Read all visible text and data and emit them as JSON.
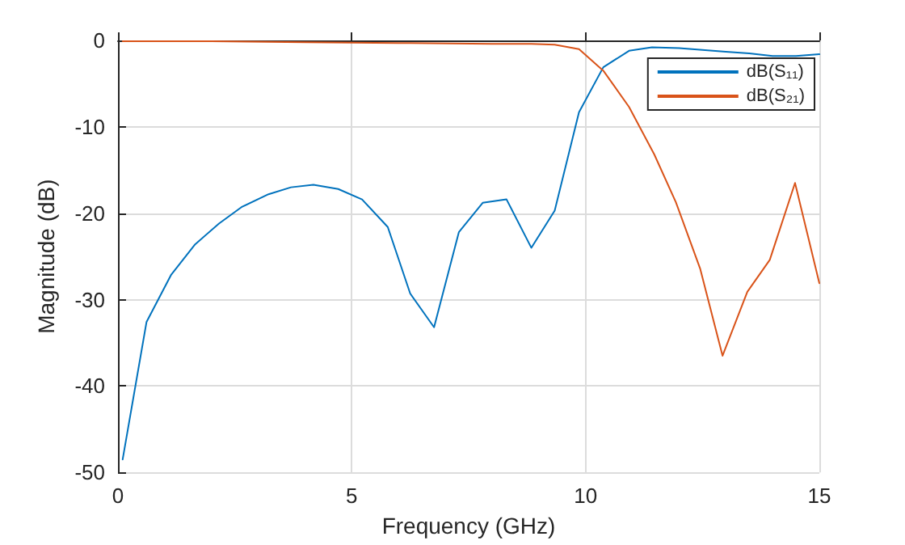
{
  "chart_data": {
    "type": "line",
    "xlabel": "Frequency (GHz)",
    "ylabel": "Magnitude (dB)",
    "xlim": [
      0,
      15
    ],
    "xticks": [
      0,
      5,
      10,
      15
    ],
    "ylim": [
      -50,
      0
    ],
    "yticks": [
      -50,
      -40,
      -30,
      -20,
      -10,
      0
    ],
    "grid": true,
    "legend": "top right",
    "marker": "none",
    "line_style": "solid",
    "series": [
      {
        "name": "dB(S₁₁)",
        "color": "#0072bd",
        "x": [
          0.1,
          0.61,
          1.14,
          1.65,
          2.16,
          2.64,
          3.22,
          3.7,
          4.18,
          4.71,
          5.22,
          5.77,
          6.25,
          6.76,
          7.29,
          7.8,
          8.31,
          8.84,
          9.34,
          9.86,
          10.38,
          10.93,
          11.42,
          12,
          12.5,
          13,
          13.5,
          14,
          14.5,
          15
        ],
        "values": [
          -48.5,
          -32.6,
          -27.1,
          -23.6,
          -21.2,
          -19.3,
          -17.8,
          -17,
          -16.7,
          -17.2,
          -18.4,
          -21.6,
          -29.3,
          -33.2,
          -22.2,
          -18.8,
          -18.4,
          -24,
          -19.7,
          -8.3,
          -3.1,
          -1.2,
          -0.8,
          -0.9,
          -1.1,
          -1.3,
          -1.5,
          -1.8,
          -1.8,
          -1.6
        ]
      },
      {
        "name": "dB(S₂₁)",
        "color": "#d95319",
        "x": [
          0.1,
          2,
          4,
          6,
          8,
          8.84,
          9.34,
          9.86,
          10.38,
          10.93,
          11.47,
          11.93,
          12.45,
          12.93,
          13.46,
          13.94,
          14.48,
          15
        ],
        "values": [
          -0.1,
          -0.1,
          -0.2,
          -0.3,
          -0.4,
          -0.4,
          -0.5,
          -1,
          -3.5,
          -7.7,
          -13.2,
          -18.7,
          -26.4,
          -36.5,
          -29.1,
          -25.4,
          -16.5,
          -28.1
        ]
      }
    ]
  }
}
